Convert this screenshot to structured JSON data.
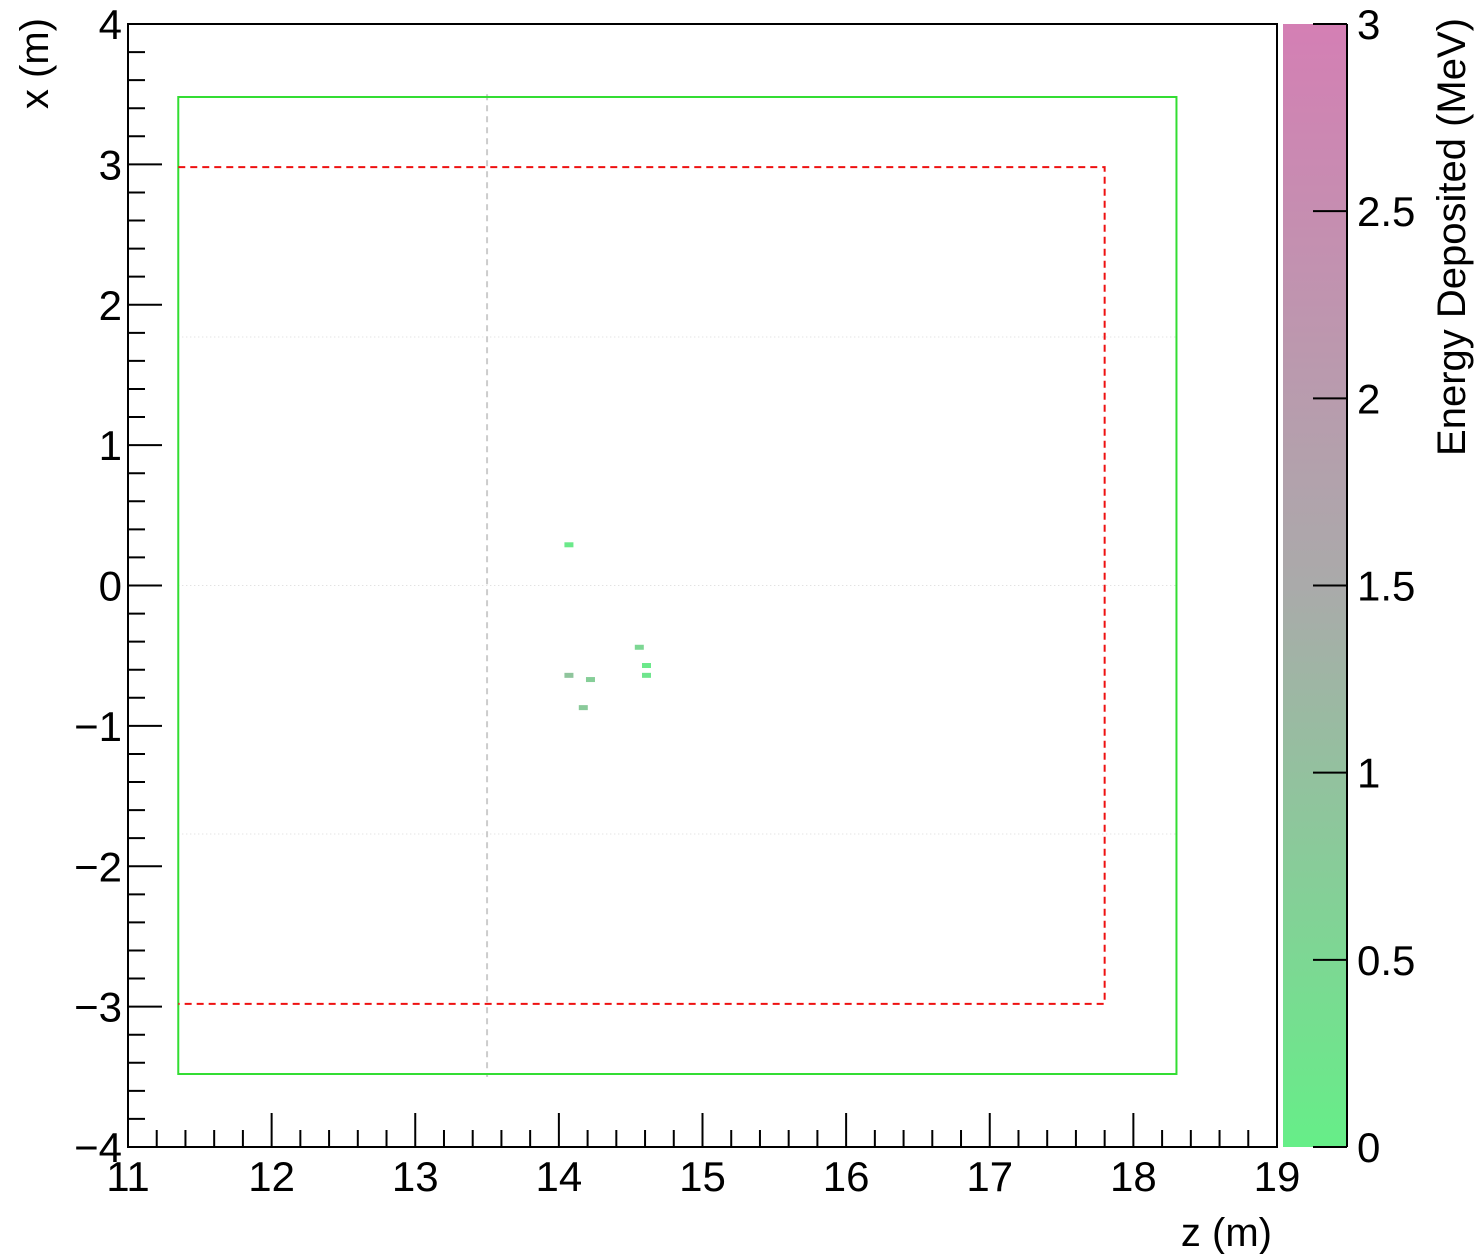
{
  "chart_data": {
    "type": "heatmap",
    "title": "",
    "xlabel": "z (m)",
    "ylabel": "x (m)",
    "xlim": [
      11,
      19
    ],
    "ylim": [
      -4,
      4
    ],
    "x_ticks": [
      "11",
      "12",
      "13",
      "14",
      "15",
      "16",
      "17",
      "18",
      "19"
    ],
    "y_ticks": [
      "−4",
      "−3",
      "−2",
      "−1",
      "0",
      "1",
      "2",
      "3",
      "4"
    ],
    "colorbar": {
      "label": "Energy Deposited (MeV)",
      "range": [
        0,
        3
      ],
      "ticks": [
        "0",
        "0.5",
        "1",
        "1.5",
        "2",
        "2.5",
        "3"
      ],
      "color_low": "#66ee88",
      "color_mid": "#aaaaaa",
      "color_high": "#d47fb4"
    },
    "outer_box": {
      "z": [
        11.35,
        18.3
      ],
      "x": [
        -3.48,
        3.48
      ],
      "color": "#33dd33"
    },
    "fiducial_box": {
      "z": [
        11.35,
        17.8
      ],
      "x": [
        -2.98,
        2.98
      ],
      "color": "#ee1111"
    },
    "vertical_line": {
      "z": 13.5,
      "x": [
        -3.5,
        3.5
      ],
      "color": "#cccccc"
    },
    "horizontal_dotted_lines": [
      1.77,
      0,
      -1.77
    ],
    "points": [
      {
        "z": 14.07,
        "x": 0.29,
        "energy": 0.1
      },
      {
        "z": 14.56,
        "x": -0.44,
        "energy": 0.5
      },
      {
        "z": 14.61,
        "x": -0.57,
        "energy": 0.1
      },
      {
        "z": 14.61,
        "x": -0.64,
        "energy": 0.2
      },
      {
        "z": 14.07,
        "x": -0.64,
        "energy": 0.9
      },
      {
        "z": 14.22,
        "x": -0.67,
        "energy": 0.7
      },
      {
        "z": 14.17,
        "x": -0.87,
        "energy": 0.8
      }
    ]
  }
}
